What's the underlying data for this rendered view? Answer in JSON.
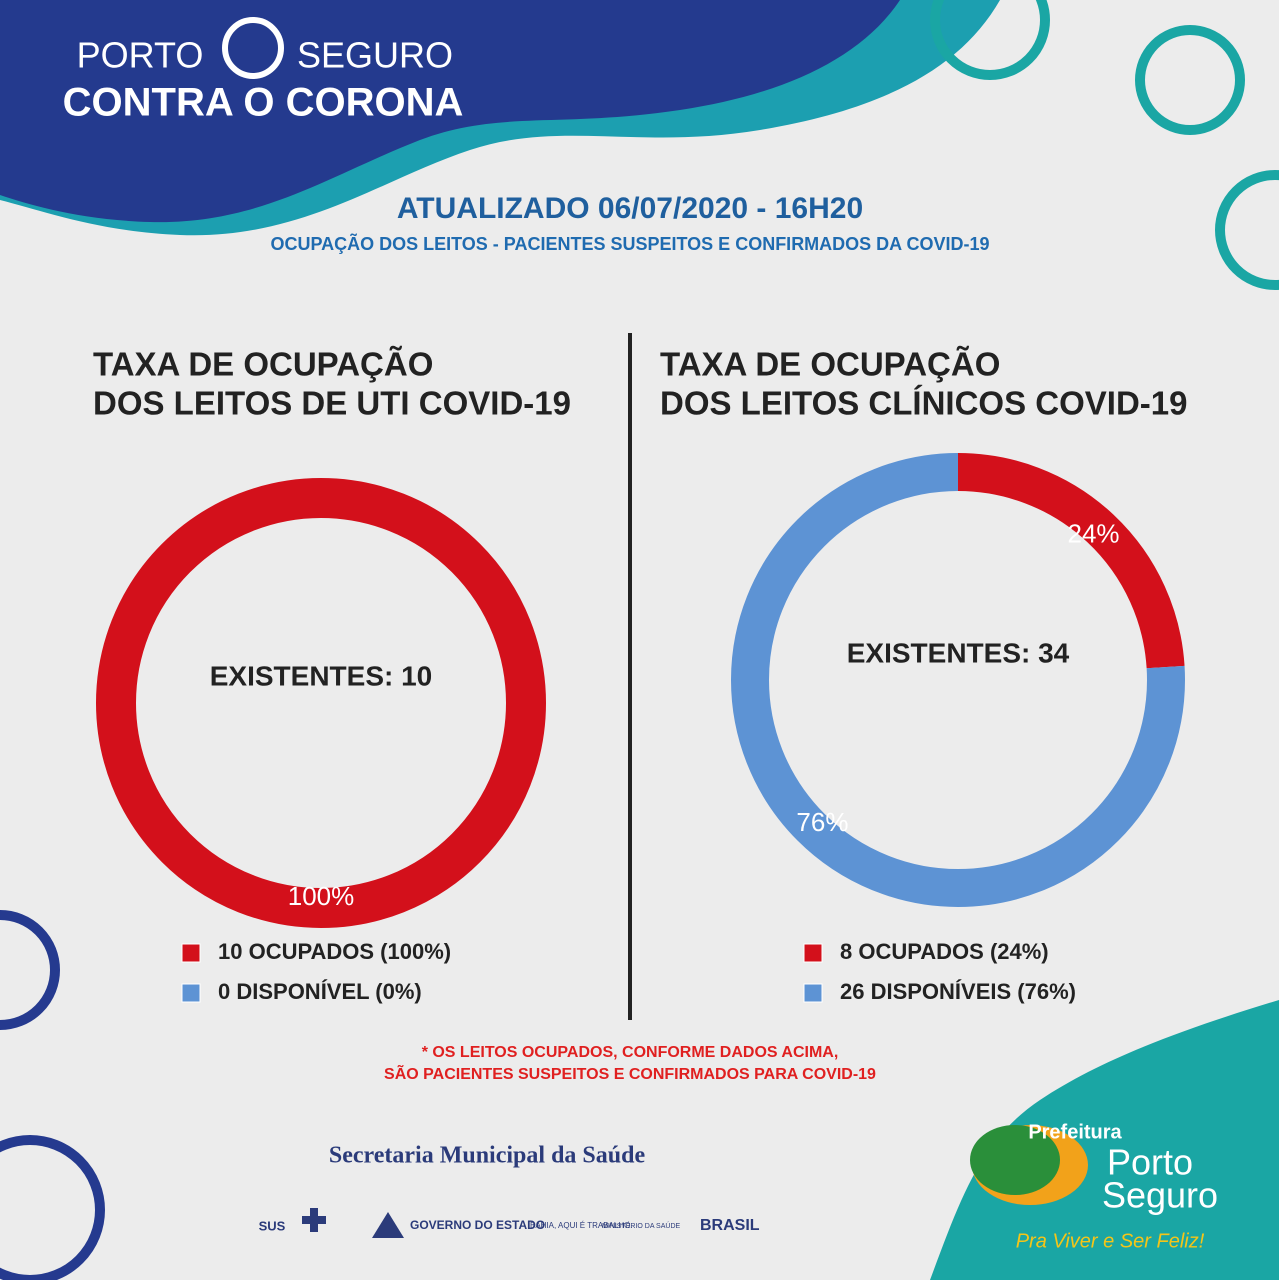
{
  "header": {
    "brand_left": "PORTO",
    "brand_right": "SEGURO",
    "brand_bottom": "CONTRA O CORONA",
    "updated": "ATUALIZADO 06/07/2020 - 16H20",
    "subtitle": "OCUPAÇÃO DOS LEITOS - PACIENTES SUSPEITOS E CONFIRMADOS DA COVID-19"
  },
  "chart_data": [
    {
      "type": "donut",
      "title": "TAXA DE OCUPAÇÃO",
      "subtitle": "DOS LEITOS DE UTI COVID-19",
      "center_label": "EXISTENTES: 10",
      "categories": [
        "10 OCUPADOS (100%)",
        "0 DISPONÍVEL (0%)"
      ],
      "values": [
        100,
        0
      ],
      "value_labels": [
        "100%",
        null
      ],
      "colors": [
        "#d3101b",
        "#5d93d4"
      ]
    },
    {
      "type": "donut",
      "title": "TAXA DE OCUPAÇÃO",
      "subtitle": "DOS LEITOS CLÍNICOS COVID-19",
      "center_label": "EXISTENTES: 34",
      "categories": [
        "8 OCUPADOS (24%)",
        "26 DISPONÍVEIS (76%)"
      ],
      "values": [
        24,
        76
      ],
      "value_labels": [
        "24%",
        "76%"
      ],
      "colors": [
        "#d3101b",
        "#5d93d4"
      ]
    }
  ],
  "footer": {
    "note_line1": "* OS LEITOS OCUPADOS, CONFORME DADOS ACIMA,",
    "note_line2": "SÃO PACIENTES SUSPEITOS E CONFIRMADOS PARA COVID-19",
    "secretaria": "Secretaria Municipal da Saúde",
    "sus": "SUS",
    "governo": "GOVERNO DO ESTADO",
    "bahia": "BAHIA, AQUI É TRABALHO.",
    "ministerio": "MINISTÉRIO DA SAÚDE",
    "brasil": "BRASIL",
    "prefeitura": "Prefeitura",
    "porto": "Porto",
    "seguro": "Seguro",
    "slogan": "Pra Viver e Ser Feliz!"
  }
}
